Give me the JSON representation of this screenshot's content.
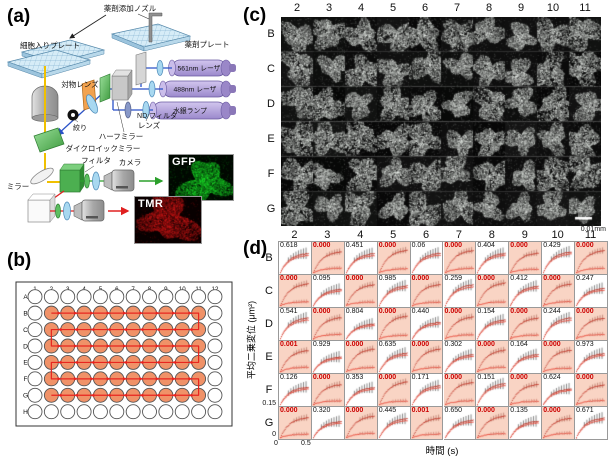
{
  "colors": {
    "accent_red": "#e8251f",
    "significant_bg": "#f9d4c4",
    "significant_text": "#cc0000",
    "well_fill": "#f09268",
    "well_stroke": "#555555",
    "curve_dark_red": "#c0392b",
    "curve_bright_red": "#e84a3a",
    "errorbar_gray": "#555555",
    "beam_blue": "#2a52c8",
    "beam_yellow": "#f0c000",
    "beam_green": "#2ca02c",
    "beam_red": "#e02020",
    "laser_body": "#b4a3dc",
    "dichroic_green": "#6cc46c",
    "filter_orange": "#f2a24e",
    "lens_blue": "#a8d8f0"
  },
  "panel_a": {
    "label": "(a)",
    "nozzle_label": "薬剤添加ノズル",
    "cell_plate_label": "細胞入りプレート",
    "drug_plate_label": "薬剤プレート",
    "laser561_label": "561nm レーザ",
    "laser488_label": "488nm レーザ",
    "mercury_lamp_label": "水銀ランプ",
    "objective_label": "対物レンズ",
    "iris_label": "絞り",
    "lens_label": "レンズ",
    "half_mirror_label": "ハーフミラー",
    "nd_filter_label": "ND フィルタ",
    "dichroic_label": "ダイクロイックミラー",
    "mirror_label": "ミラー",
    "filter_label": "フィルタ",
    "camera_label": "カメラ",
    "gfp_label": "GFP",
    "tmr_label": "TMR"
  },
  "panel_b": {
    "label": "(b)",
    "row_labels": [
      "A",
      "B",
      "C",
      "D",
      "E",
      "F",
      "G",
      "H"
    ],
    "col_labels": [
      "1",
      "2",
      "3",
      "4",
      "5",
      "6",
      "7",
      "8",
      "9",
      "10",
      "11",
      "12"
    ],
    "filled_rows": [
      "B",
      "C",
      "D",
      "E",
      "F",
      "G"
    ],
    "filled_cols": [
      "2",
      "3",
      "4",
      "5",
      "6",
      "7",
      "8",
      "9",
      "10",
      "11"
    ],
    "scan_path": "serpentine B2→B11→C11→C2→D2→D11→E11→E2→F2→F11→G11→G2"
  },
  "panel_c": {
    "label": "(c)",
    "col_labels": [
      "2",
      "3",
      "4",
      "5",
      "6",
      "7",
      "8",
      "9",
      "10",
      "11"
    ],
    "row_labels": [
      "B",
      "C",
      "D",
      "E",
      "F",
      "G"
    ],
    "scale_label": "0.01mm"
  },
  "panel_d": {
    "label": "(d)",
    "col_labels": [
      "2",
      "3",
      "4",
      "5",
      "6",
      "7",
      "8",
      "9",
      "10",
      "11"
    ],
    "row_labels": [
      "B",
      "C",
      "D",
      "E",
      "F",
      "G"
    ],
    "ylabel": "平均二乗変位 (μm²)",
    "xlabel": "時間 (s)",
    "ytick_top": "0.15",
    "ytick_bottom": "0",
    "xtick_left": "0",
    "xtick_mid": "0.5",
    "values": [
      [
        "0.618",
        "0.000",
        "0.451",
        "0.000",
        "0.06",
        "0.000",
        "0.404",
        "0.000",
        "0.429",
        "0.000"
      ],
      [
        "0.000",
        "0.095",
        "0.000",
        "0.985",
        "0.000",
        "0.259",
        "0.000",
        "0.412",
        "0.000",
        "0.247"
      ],
      [
        "0.541",
        "0.000",
        "0.804",
        "0.000",
        "0.440",
        "0.000",
        "0.154",
        "0.000",
        "0.244",
        "0.000"
      ],
      [
        "0.001",
        "0.929",
        "0.000",
        "0.635",
        "0.000",
        "0.302",
        "0.000",
        "0.164",
        "0.000",
        "0.973"
      ],
      [
        "0.126",
        "0.000",
        "0.353",
        "0.000",
        "0.171",
        "0.000",
        "0.151",
        "0.000",
        "0.624",
        "0.000"
      ],
      [
        "0.000",
        "0.320",
        "0.000",
        "0.445",
        "0.001",
        "0.650",
        "0.000",
        "0.135",
        "0.000",
        "0.671"
      ]
    ]
  }
}
